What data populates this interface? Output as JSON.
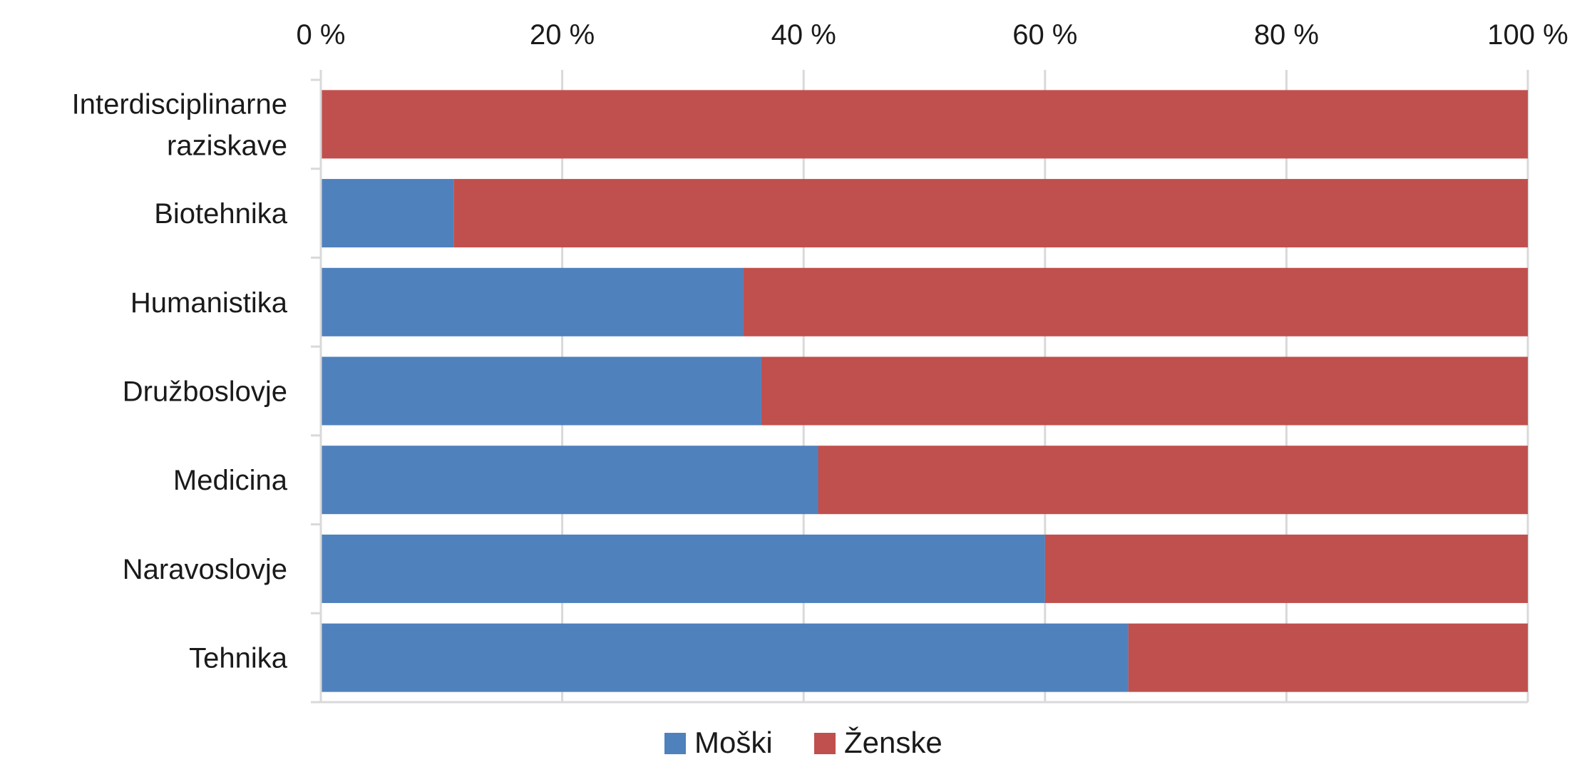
{
  "chart_data": {
    "type": "bar",
    "orientation": "horizontal",
    "stacked": "percent",
    "categories": [
      [
        "Interdisciplinarne",
        "raziskave"
      ],
      [
        "Biotehnika"
      ],
      [
        "Humanistika"
      ],
      [
        "Družboslovje"
      ],
      [
        "Medicina"
      ],
      [
        "Naravoslovje"
      ],
      [
        "Tehnika"
      ]
    ],
    "series": [
      {
        "name": "Moški",
        "color": "#4f81bd",
        "values": [
          0,
          11,
          35,
          36.5,
          41.2,
          60,
          66.9
        ]
      },
      {
        "name": "Ženske",
        "color": "#c0504d",
        "values": [
          100,
          89,
          65,
          63.5,
          58.8,
          40,
          33.1
        ]
      }
    ],
    "xlim": [
      0,
      100
    ],
    "x_ticks": [
      {
        "value": 0,
        "label": "0 %"
      },
      {
        "value": 20,
        "label": "20 %"
      },
      {
        "value": 40,
        "label": "40 %"
      },
      {
        "value": 60,
        "label": "60 %"
      },
      {
        "value": 80,
        "label": "80 %"
      },
      {
        "value": 100,
        "label": "100 %"
      }
    ],
    "x_axis_position": "top",
    "grid": true,
    "legend_position": "bottom"
  }
}
